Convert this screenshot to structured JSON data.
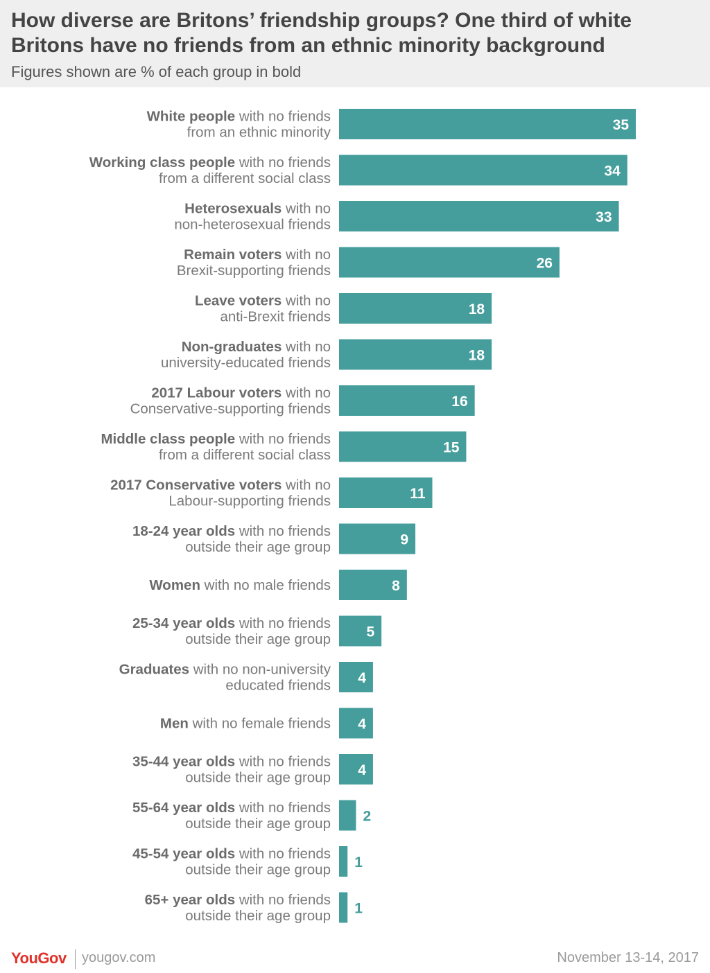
{
  "header": {
    "title": "How diverse are Britons’ friendship groups? One third of white Britons have no friends from an ethnic minority background",
    "subtitle": "Figures shown are % of each group in bold"
  },
  "colors": {
    "bar": "#459e9c",
    "header_bg": "#efefef",
    "brand": "#e0312a"
  },
  "chart_data": {
    "type": "bar",
    "orientation": "horizontal",
    "title": "How diverse are Britons’ friendship groups? One third of white Britons have no friends from an ethnic minority background",
    "subtitle": "Figures shown are % of each group in bold",
    "xlim": [
      0,
      35
    ],
    "grid": false,
    "categories": [
      [
        {
          "t": "White people",
          "b": true
        },
        {
          "t": " with no friends",
          "b": false
        },
        {
          "t": "\nfrom an ethnic minority",
          "b": false
        }
      ],
      [
        {
          "t": "Working class people",
          "b": true
        },
        {
          "t": " with no friends",
          "b": false
        },
        {
          "t": "\nfrom a different social class",
          "b": false
        }
      ],
      [
        {
          "t": "Heterosexuals",
          "b": true
        },
        {
          "t": " with no",
          "b": false
        },
        {
          "t": "\nnon-heterosexual friends",
          "b": false
        }
      ],
      [
        {
          "t": "Remain voters",
          "b": true
        },
        {
          "t": " with no",
          "b": false
        },
        {
          "t": "\nBrexit-supporting friends",
          "b": false
        }
      ],
      [
        {
          "t": "Leave voters",
          "b": true
        },
        {
          "t": " with no",
          "b": false
        },
        {
          "t": "\nanti-Brexit friends",
          "b": false
        }
      ],
      [
        {
          "t": "Non-graduates",
          "b": true
        },
        {
          "t": " with no",
          "b": false
        },
        {
          "t": "\nuniversity-educated friends",
          "b": false
        }
      ],
      [
        {
          "t": "2017 Labour voters",
          "b": true
        },
        {
          "t": " with no",
          "b": false
        },
        {
          "t": "\nConservative-supporting friends",
          "b": false
        }
      ],
      [
        {
          "t": "Middle class people",
          "b": true
        },
        {
          "t": " with no friends",
          "b": false
        },
        {
          "t": "\nfrom a different social class",
          "b": false
        }
      ],
      [
        {
          "t": "2017 Conservative voters",
          "b": true
        },
        {
          "t": " with no",
          "b": false
        },
        {
          "t": "\nLabour-supporting friends",
          "b": false
        }
      ],
      [
        {
          "t": "18-24 year olds",
          "b": true
        },
        {
          "t": " with no friends",
          "b": false
        },
        {
          "t": "\noutside their age group",
          "b": false
        }
      ],
      [
        {
          "t": "Women",
          "b": true
        },
        {
          "t": " with no male friends",
          "b": false
        }
      ],
      [
        {
          "t": "25-34 year olds",
          "b": true
        },
        {
          "t": " with no friends",
          "b": false
        },
        {
          "t": "\noutside their age group",
          "b": false
        }
      ],
      [
        {
          "t": "Graduates",
          "b": true
        },
        {
          "t": " with no non-university",
          "b": false
        },
        {
          "t": "\neducated friends",
          "b": false
        }
      ],
      [
        {
          "t": "Men",
          "b": true
        },
        {
          "t": " with no female friends",
          "b": false
        }
      ],
      [
        {
          "t": "35-44 year olds",
          "b": true
        },
        {
          "t": " with no friends",
          "b": false
        },
        {
          "t": "\noutside their age group",
          "b": false
        }
      ],
      [
        {
          "t": "55-64 year olds",
          "b": true
        },
        {
          "t": " with no friends",
          "b": false
        },
        {
          "t": "\noutside their age group",
          "b": false
        }
      ],
      [
        {
          "t": "45-54 year olds",
          "b": true
        },
        {
          "t": " with no friends",
          "b": false
        },
        {
          "t": "\noutside their age group",
          "b": false
        }
      ],
      [
        {
          "t": "65+ year olds",
          "b": true
        },
        {
          "t": " with no friends",
          "b": false
        },
        {
          "t": "\noutside their age group",
          "b": false
        }
      ]
    ],
    "values": [
      35,
      34,
      33,
      26,
      18,
      18,
      16,
      15,
      11,
      9,
      8,
      5,
      4,
      4,
      4,
      2,
      1,
      1
    ]
  },
  "footer": {
    "logo": "YouGov",
    "url": "yougov.com",
    "date": "November 13-14, 2017"
  }
}
